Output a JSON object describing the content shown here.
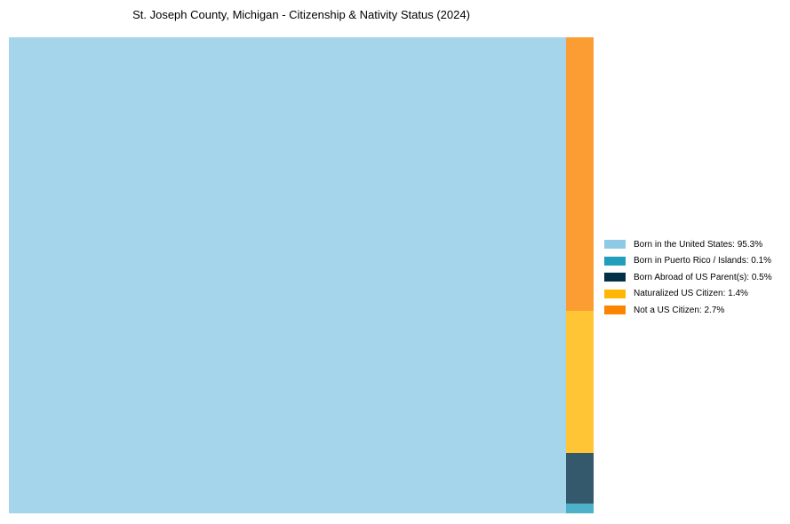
{
  "chart_data": {
    "type": "treemap",
    "title": "St. Joseph County, Michigan - Citizenship & Nativity Status (2024)",
    "background_color": "#ffffff",
    "cell_alpha": 0.8,
    "legend_position": "center right",
    "layout_hint": "largest item fills left slice full-height; remaining items stacked top-to-bottom in right column in descending order",
    "items": [
      {
        "label": "Born in the United States",
        "value_pct": 95.3,
        "color": "#8ecae6",
        "legend_text": "Born in the United States: 95.3%"
      },
      {
        "label": "Born in Puerto Rico / Islands",
        "value_pct": 0.1,
        "color": "#219ebc",
        "legend_text": "Born in Puerto Rico / Islands: 0.1%"
      },
      {
        "label": "Born Abroad of US Parent(s)",
        "value_pct": 0.5,
        "color": "#023047",
        "legend_text": "Born Abroad of US Parent(s): 0.5%"
      },
      {
        "label": "Naturalized US Citizen",
        "value_pct": 1.4,
        "color": "#ffb703",
        "legend_text": "Naturalized US Citizen: 1.4%"
      },
      {
        "label": "Not a US Citizen",
        "value_pct": 2.7,
        "color": "#fb8500",
        "legend_text": "Not a US Citizen: 2.7%"
      }
    ]
  }
}
